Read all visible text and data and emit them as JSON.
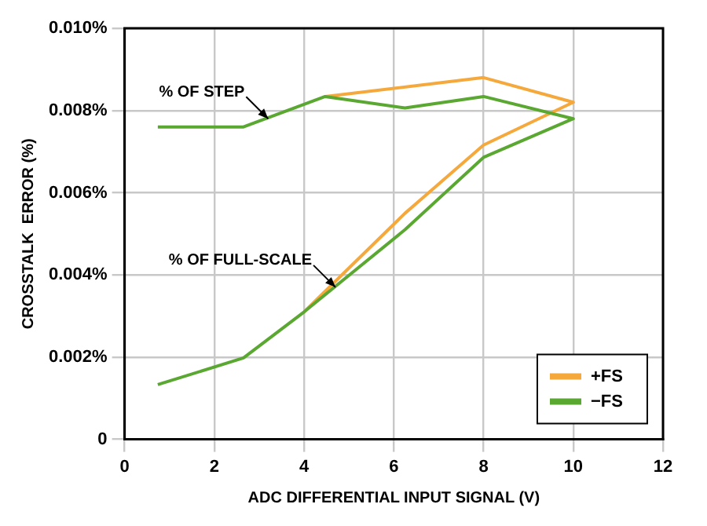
{
  "chart_data": {
    "type": "line",
    "xlabel": "ADC DIFFERENTIAL INPUT SIGNAL (V)",
    "ylabel": "CROSSTALK  ERROR (%)",
    "xlim": [
      0,
      12
    ],
    "xticks": [
      0,
      2,
      4,
      6,
      8,
      10,
      12
    ],
    "ylim": [
      0,
      0.01
    ],
    "yticks": [
      0,
      {
        "value": 0.002,
        "label": "0.002%"
      },
      {
        "value": 0.004,
        "label": "0.004%"
      },
      {
        "value": 0.006,
        "label": "0.006%"
      },
      {
        "value": 0.008,
        "label": "0.008%"
      },
      {
        "value": 0.01,
        "label": "0.010%"
      }
    ],
    "grid": true,
    "legend": "bottom right",
    "marker": "none",
    "line_style": "solid",
    "annotations": [
      {
        "text": "% OF STEP",
        "x": 3.2,
        "y": 0.0078
      },
      {
        "text": "% OF FULL-SCALE",
        "x": 4.7,
        "y": 0.0037
      }
    ],
    "series": [
      {
        "name": "+FS",
        "color": "#f5a93c",
        "x": [
          4,
          6.25,
          8,
          10,
          8,
          4.47
        ],
        "values": [
          0.0031,
          0.0055,
          0.00716,
          0.0082,
          0.0088,
          0.00834
        ]
      },
      {
        "name": "−FS",
        "color": "#5aa832",
        "x": [
          0.74,
          2.65,
          4,
          6.25,
          8,
          10,
          8,
          6.25,
          4.47,
          2.65,
          0.74
        ],
        "values": [
          0.00133,
          0.00198,
          0.0031,
          0.0051,
          0.00686,
          0.0078,
          0.00834,
          0.00806,
          0.00834,
          0.0076,
          0.0076
        ]
      }
    ]
  }
}
